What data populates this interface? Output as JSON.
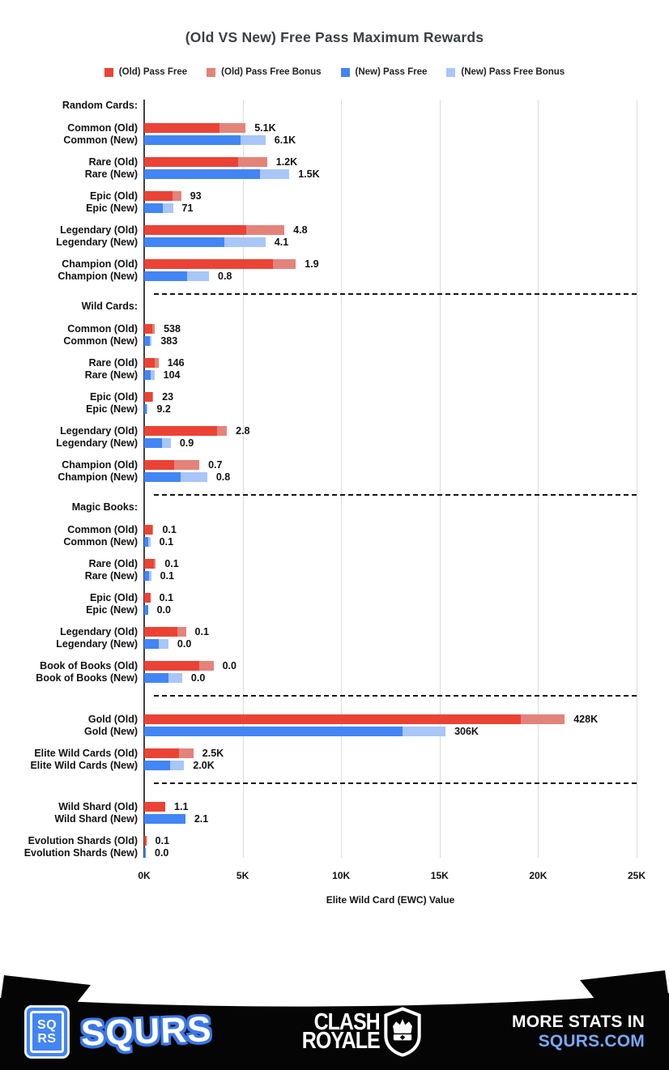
{
  "title": "(Old VS New) Free Pass Maximum Rewards",
  "colors": {
    "old_base": "#ea4335",
    "old_bonus": "#e3837a",
    "new_base": "#4285f4",
    "new_bonus": "#a8c6f7",
    "gridline": "#dadce0",
    "axis": "#424242",
    "footer_bg": "#050505",
    "footer_accent": "#79a9f5"
  },
  "legend": [
    {
      "label": "(Old) Pass Free",
      "color": "#ea4335"
    },
    {
      "label": "(Old) Pass Free Bonus",
      "color": "#e3837a"
    },
    {
      "label": "(New) Pass Free",
      "color": "#4285f4"
    },
    {
      "label": "(New) Pass Free Bonus",
      "color": "#a8c6f7"
    }
  ],
  "chart_data": {
    "type": "bar",
    "orientation": "horizontal",
    "title": "(Old VS New) Free Pass Maximum Rewards",
    "xlabel": "Elite Wild Card (EWC) Value",
    "xlim": [
      0,
      25000
    ],
    "x_ticks": [
      "0K",
      "5K",
      "10K",
      "15K",
      "20K",
      "25K"
    ],
    "series_names": [
      "(Old) Pass Free",
      "(Old) Pass Free Bonus",
      "(New) Pass Free",
      "(New) Pass Free Bonus"
    ],
    "note": "base = Pass Free EWC value, bonus = Pass Free Bonus EWC value; value = printed data label",
    "sections": [
      {
        "header": "Random Cards:",
        "rows": [
          {
            "label": "Common (Old)",
            "variant": "old",
            "base": 3840,
            "bonus": 1310,
            "value": "5.1K"
          },
          {
            "label": "Common (New)",
            "variant": "new",
            "base": 4880,
            "bonus": 1280,
            "value": "6.1K"
          },
          {
            "label": "Rare (Old)",
            "variant": "old",
            "base": 4750,
            "bonus": 1490,
            "value": "1.2K"
          },
          {
            "label": "Rare (New)",
            "variant": "new",
            "base": 5900,
            "bonus": 1470,
            "value": "1.5K"
          },
          {
            "label": "Epic (Old)",
            "variant": "old",
            "base": 1420,
            "bonus": 460,
            "value": "93"
          },
          {
            "label": "Epic (New)",
            "variant": "new",
            "base": 940,
            "bonus": 520,
            "value": "71"
          },
          {
            "label": "Legendary (Old)",
            "variant": "old",
            "base": 5180,
            "bonus": 1940,
            "value": "4.8"
          },
          {
            "label": "Legendary (New)",
            "variant": "new",
            "base": 4060,
            "bonus": 2100,
            "value": "4.1"
          },
          {
            "label": "Champion (Old)",
            "variant": "old",
            "base": 6540,
            "bonus": 1160,
            "value": "1.9"
          },
          {
            "label": "Champion (New)",
            "variant": "new",
            "base": 2170,
            "bonus": 1120,
            "value": "0.8"
          }
        ]
      },
      {
        "header": "Wild Cards:",
        "rows": [
          {
            "label": "Common (Old)",
            "variant": "old",
            "base": 430,
            "bonus": 108,
            "value": "538"
          },
          {
            "label": "Common (New)",
            "variant": "new",
            "base": 275,
            "bonus": 108,
            "value": "383"
          },
          {
            "label": "Rare (Old)",
            "variant": "old",
            "base": 520,
            "bonus": 210,
            "value": "146"
          },
          {
            "label": "Rare (New)",
            "variant": "new",
            "base": 340,
            "bonus": 180,
            "value": "104"
          },
          {
            "label": "Epic (Old)",
            "variant": "old",
            "base": 410,
            "bonus": 50,
            "value": "23"
          },
          {
            "label": "Epic (New)",
            "variant": "new",
            "base": 136,
            "bonus": 48,
            "value": "9.2"
          },
          {
            "label": "Legendary (Old)",
            "variant": "old",
            "base": 3700,
            "bonus": 500,
            "value": "2.8"
          },
          {
            "label": "Legendary (New)",
            "variant": "new",
            "base": 890,
            "bonus": 460,
            "value": "0.9"
          },
          {
            "label": "Champion (Old)",
            "variant": "old",
            "base": 1520,
            "bonus": 1280,
            "value": "0.7"
          },
          {
            "label": "Champion (New)",
            "variant": "new",
            "base": 1870,
            "bonus": 1330,
            "value": "0.8"
          }
        ]
      },
      {
        "header": "Magic Books:",
        "rows": [
          {
            "label": "Common (Old)",
            "variant": "old",
            "base": 430,
            "bonus": 35,
            "value": "0.1"
          },
          {
            "label": "Common (New)",
            "variant": "new",
            "base": 220,
            "bonus": 95,
            "value": "0.1"
          },
          {
            "label": "Rare (Old)",
            "variant": "old",
            "base": 500,
            "bonus": 90,
            "value": "0.1"
          },
          {
            "label": "Rare (New)",
            "variant": "new",
            "base": 250,
            "bonus": 105,
            "value": "0.1"
          },
          {
            "label": "Epic (Old)",
            "variant": "old",
            "base": 315,
            "bonus": 0,
            "value": "0.1"
          },
          {
            "label": "Epic (New)",
            "variant": "new",
            "base": 190,
            "bonus": 0,
            "value": "0.0"
          },
          {
            "label": "Legendary (Old)",
            "variant": "old",
            "base": 1680,
            "bonus": 440,
            "value": "0.1"
          },
          {
            "label": "Legendary (New)",
            "variant": "new",
            "base": 750,
            "bonus": 480,
            "value": "0.0"
          },
          {
            "label": "Book of Books (Old)",
            "variant": "old",
            "base": 2800,
            "bonus": 720,
            "value": "0.0"
          },
          {
            "label": "Book of Books (New)",
            "variant": "new",
            "base": 1230,
            "bonus": 700,
            "value": "0.0"
          }
        ]
      },
      {
        "header": null,
        "rows": [
          {
            "label": "Gold (Old)",
            "variant": "old",
            "base": 19100,
            "bonus": 2250,
            "value": "428K"
          },
          {
            "label": "Gold (New)",
            "variant": "new",
            "base": 13100,
            "bonus": 2200,
            "value": "306K"
          },
          {
            "label": "Elite Wild Cards (Old)",
            "variant": "old",
            "base": 1760,
            "bonus": 740,
            "value": "2.5K"
          },
          {
            "label": "Elite Wild Cards (New)",
            "variant": "new",
            "base": 1330,
            "bonus": 700,
            "value": "2.0K"
          }
        ]
      },
      {
        "header": null,
        "rows": [
          {
            "label": "Wild Shard (Old)",
            "variant": "old",
            "base": 1070,
            "bonus": 0,
            "value": "1.1"
          },
          {
            "label": "Wild Shard (New)",
            "variant": "new",
            "base": 2090,
            "bonus": 0,
            "value": "2.1"
          },
          {
            "label": "Evolution Shards (Old)",
            "variant": "old",
            "base": 110,
            "bonus": 0,
            "value": "0.1"
          },
          {
            "label": "Evolution Shards (New)",
            "variant": "new",
            "base": 80,
            "bonus": 0,
            "value": "0.0"
          }
        ]
      }
    ]
  },
  "footer": {
    "badge_line1": "SQ",
    "badge_line2": "RS",
    "brand": "SQURS",
    "game_line1": "CLASH",
    "game_line2": "ROYALE",
    "cta_line1": "MORE STATS IN",
    "cta_line2": "SQURS.COM"
  }
}
